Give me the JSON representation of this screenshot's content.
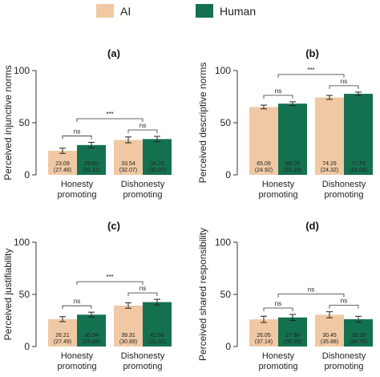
{
  "legend": {
    "items": [
      {
        "label": "AI",
        "color": "#f0c9a4"
      },
      {
        "label": "Human",
        "color": "#14714f"
      }
    ]
  },
  "chart_data": [
    {
      "type": "bar",
      "panel": "(a)",
      "ylabel": "Perceived injunctive norms",
      "ylim": [
        0,
        100
      ],
      "yticks": [
        "0",
        "50",
        "100"
      ],
      "categories": [
        "Honesty\npromoting",
        "Dishonesty\npromoting"
      ],
      "series": [
        {
          "name": "AI",
          "values": [
            23.09,
            33.54
          ],
          "sd_labels": [
            "(27.48)",
            "(32.07)"
          ],
          "labels": [
            "23.09",
            "33.54"
          ],
          "err": [
            2.5,
            2.8
          ]
        },
        {
          "name": "Human",
          "values": [
            28.6,
            34.33
          ],
          "sd_labels": [
            "(31.41)",
            "(30.87)"
          ],
          "labels": [
            "28.60",
            "34.33"
          ],
          "err": [
            2.6,
            2.6
          ]
        }
      ],
      "comparisons": [
        {
          "type": "within",
          "category": 0,
          "label": "ns"
        },
        {
          "type": "within",
          "category": 1,
          "label": "ns"
        },
        {
          "type": "between",
          "label": "***"
        }
      ]
    },
    {
      "type": "bar",
      "panel": "(b)",
      "ylabel": "Perceived descriptive norms",
      "ylim": [
        0,
        100
      ],
      "yticks": [
        "0",
        "50",
        "100"
      ],
      "categories": [
        "Honesty\npromoting",
        "Dishonesty\npromoting"
      ],
      "series": [
        {
          "name": "AI",
          "values": [
            65.09,
            74.29
          ],
          "sd_labels": [
            "(24.92)",
            "(24.32)"
          ],
          "labels": [
            "65.09",
            "74.29"
          ],
          "err": [
            1.8,
            1.9
          ]
        },
        {
          "name": "Human",
          "values": [
            68.28,
            77.74
          ],
          "sd_labels": [
            "(23.19)",
            "(21.06)"
          ],
          "labels": [
            "68.28",
            "77.74"
          ],
          "err": [
            1.8,
            1.6
          ]
        }
      ],
      "comparisons": [
        {
          "type": "within",
          "category": 0,
          "label": "ns"
        },
        {
          "type": "within",
          "category": 1,
          "label": "ns"
        },
        {
          "type": "between",
          "label": "***"
        }
      ]
    },
    {
      "type": "bar",
      "panel": "(c)",
      "ylabel": "Perceived justifiability",
      "ylim": [
        0,
        100
      ],
      "yticks": [
        "0",
        "50",
        "100"
      ],
      "categories": [
        "Honesty\npromoting",
        "Dishonesty\npromoting"
      ],
      "series": [
        {
          "name": "AI",
          "values": [
            26.21,
            39.31
          ],
          "sd_labels": [
            "(27.49)",
            "(30.89)"
          ],
          "labels": [
            "26.21",
            "39.31"
          ],
          "err": [
            2.4,
            2.6
          ]
        },
        {
          "name": "Human",
          "values": [
            30.54,
            42.59
          ],
          "sd_labels": [
            "(26.86)",
            "(31.32)"
          ],
          "labels": [
            "30.54",
            "42.59"
          ],
          "err": [
            2.4,
            2.7
          ]
        }
      ],
      "comparisons": [
        {
          "type": "within",
          "category": 0,
          "label": "ns"
        },
        {
          "type": "within",
          "category": 1,
          "label": "ns"
        },
        {
          "type": "between",
          "label": "***"
        }
      ]
    },
    {
      "type": "bar",
      "panel": "(d)",
      "ylabel": "Perceived shared responsibility",
      "ylim": [
        0,
        100
      ],
      "yticks": [
        "0",
        "50",
        "100"
      ],
      "categories": [
        "Honesty\npromoting",
        "Dishonesty\npromoting"
      ],
      "series": [
        {
          "name": "AI",
          "values": [
            26.05,
            30.45
          ],
          "sd_labels": [
            "(37.14)",
            "(35.88)"
          ],
          "labels": [
            "26.05",
            "30.45"
          ],
          "err": [
            3.0,
            2.9
          ]
        },
        {
          "name": "Human",
          "values": [
            27.86,
            26.18
          ],
          "sd_labels": [
            "(36.55)",
            "(34.75)"
          ],
          "labels": [
            "27.86",
            "26.18"
          ],
          "err": [
            2.9,
            2.8
          ]
        }
      ],
      "comparisons": [
        {
          "type": "within",
          "category": 0,
          "label": "ns"
        },
        {
          "type": "within",
          "category": 1,
          "label": "ns"
        },
        {
          "type": "between",
          "label": "ns"
        }
      ]
    }
  ]
}
